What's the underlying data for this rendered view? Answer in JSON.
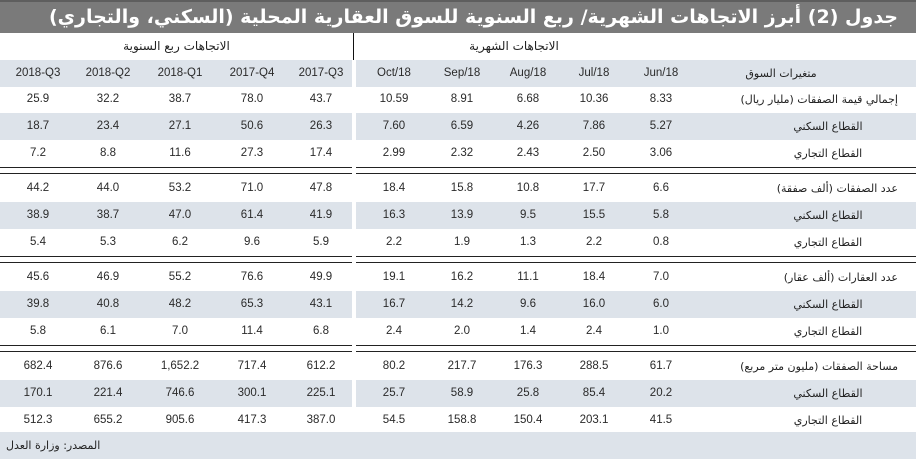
{
  "title": "جدول (2) أبرز الاتجاهات الشهرية/ ربع السنوية للسوق العقارية المحلية (السكني، والتجاري)",
  "groups": {
    "quarterly": "الاتجاهات ربع السنوية",
    "monthly": "الاتجاهات الشهرية"
  },
  "header": {
    "variable_label": "متغيرات السوق",
    "quarterly": [
      "2018-Q3",
      "2018-Q2",
      "2018-Q1",
      "2017-Q4",
      "2017-Q3"
    ],
    "monthly": [
      "Oct/18",
      "Sep/18",
      "Aug/18",
      "Jul/18",
      "Jun/18"
    ]
  },
  "rows": [
    {
      "label": "إجمالي قيمة الصفقات (مليار ريال)",
      "type": "main",
      "quarterly": [
        "25.9",
        "32.2",
        "38.7",
        "78.0",
        "43.7"
      ],
      "monthly": [
        "10.59",
        "8.91",
        "6.68",
        "10.36",
        "8.33"
      ]
    },
    {
      "label": "القطاع السكني",
      "type": "sub",
      "quarterly": [
        "18.7",
        "23.4",
        "27.1",
        "50.6",
        "26.3"
      ],
      "monthly": [
        "7.60",
        "6.59",
        "4.26",
        "7.86",
        "5.27"
      ]
    },
    {
      "label": "القطاع التجاري",
      "type": "sub",
      "quarterly": [
        "7.2",
        "8.8",
        "11.6",
        "27.3",
        "17.4"
      ],
      "monthly": [
        "2.99",
        "2.32",
        "2.43",
        "2.50",
        "3.06"
      ]
    },
    {
      "label": "عدد الصفقات (ألف صفقة)",
      "type": "main",
      "quarterly": [
        "44.2",
        "44.0",
        "53.2",
        "71.0",
        "47.8"
      ],
      "monthly": [
        "18.4",
        "15.8",
        "10.8",
        "17.7",
        "6.6"
      ]
    },
    {
      "label": "القطاع السكني",
      "type": "sub",
      "quarterly": [
        "38.9",
        "38.7",
        "47.0",
        "61.4",
        "41.9"
      ],
      "monthly": [
        "16.3",
        "13.9",
        "9.5",
        "15.5",
        "5.8"
      ]
    },
    {
      "label": "القطاع التجاري",
      "type": "sub",
      "quarterly": [
        "5.4",
        "5.3",
        "6.2",
        "9.6",
        "5.9"
      ],
      "monthly": [
        "2.2",
        "1.9",
        "1.3",
        "2.2",
        "0.8"
      ]
    },
    {
      "label": "عدد العقارات (ألف عقار)",
      "type": "main",
      "quarterly": [
        "45.6",
        "46.9",
        "55.2",
        "76.6",
        "49.9"
      ],
      "monthly": [
        "19.1",
        "16.2",
        "11.1",
        "18.4",
        "7.0"
      ]
    },
    {
      "label": "القطاع السكني",
      "type": "sub",
      "quarterly": [
        "39.8",
        "40.8",
        "48.2",
        "65.3",
        "43.1"
      ],
      "monthly": [
        "16.7",
        "14.2",
        "9.6",
        "16.0",
        "6.0"
      ]
    },
    {
      "label": "القطاع التجاري",
      "type": "sub",
      "quarterly": [
        "5.8",
        "6.1",
        "7.0",
        "11.4",
        "6.8"
      ],
      "monthly": [
        "2.4",
        "2.0",
        "1.4",
        "2.4",
        "1.0"
      ]
    },
    {
      "label": "مساحة الصفقات (مليون متر مربع)",
      "type": "main",
      "quarterly": [
        "682.4",
        "876.6",
        "1,652.2",
        "717.4",
        "612.2"
      ],
      "monthly": [
        "80.2",
        "217.7",
        "176.3",
        "288.5",
        "61.7"
      ]
    },
    {
      "label": "القطاع السكني",
      "type": "sub",
      "quarterly": [
        "170.1",
        "221.4",
        "746.6",
        "300.1",
        "225.1"
      ],
      "monthly": [
        "25.7",
        "58.9",
        "25.8",
        "85.4",
        "20.2"
      ]
    },
    {
      "label": "القطاع التجاري",
      "type": "sub",
      "quarterly": [
        "512.3",
        "655.2",
        "905.6",
        "417.3",
        "387.0"
      ],
      "monthly": [
        "54.5",
        "158.8",
        "150.4",
        "203.1",
        "41.5"
      ]
    }
  ],
  "source": "المصدر: وزارة العدل",
  "colors": {
    "title_bg": "#7a7a7a",
    "band_bg": "#dde3ea",
    "text": "#2a2a2a"
  }
}
